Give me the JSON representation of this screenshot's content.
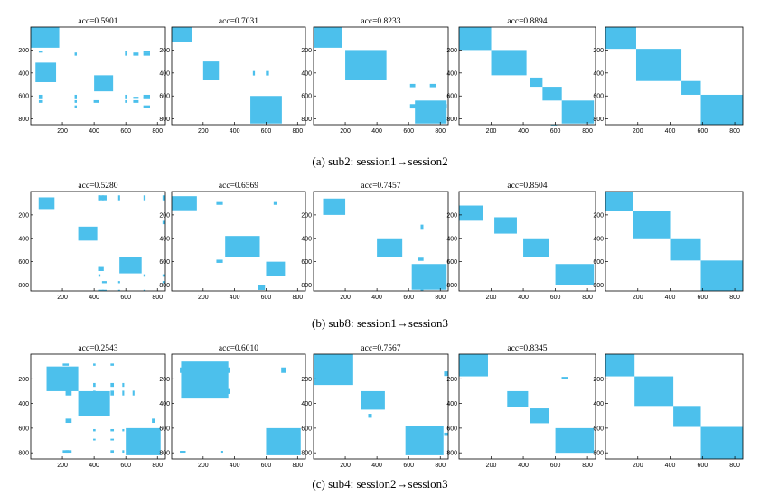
{
  "figure": {
    "captions": [
      "(a)  sub2: session1→session2",
      "(b)  sub8: session1→session3",
      "(c)  sub4: session2→session3"
    ],
    "colors": {
      "fill": "#4cc0ec",
      "background": "#ffffff",
      "axis": "#000000"
    }
  },
  "chart_data": [
    {
      "type": "heatmap",
      "title": "acc=0.5901",
      "x_range": [
        0,
        850
      ],
      "y_range": [
        0,
        850
      ],
      "xticks": [
        200,
        400,
        600,
        800
      ],
      "yticks": [
        200,
        400,
        600,
        800
      ],
      "density": 0.45,
      "blocks": [
        [
          0,
          180,
          0,
          180
        ],
        [
          30,
          160,
          310,
          480
        ],
        [
          400,
          520,
          420,
          560
        ]
      ]
    },
    {
      "type": "heatmap",
      "title": "acc=0.7031",
      "x_range": [
        0,
        850
      ],
      "y_range": [
        0,
        850
      ],
      "xticks": [
        200,
        400,
        600,
        800
      ],
      "yticks": [
        200,
        400,
        600,
        800
      ],
      "density": 0.3,
      "blocks": [
        [
          0,
          130,
          0,
          130
        ],
        [
          200,
          300,
          300,
          460
        ],
        [
          500,
          700,
          600,
          840
        ]
      ]
    },
    {
      "type": "heatmap",
      "title": "acc=0.8233",
      "x_range": [
        0,
        850
      ],
      "y_range": [
        0,
        850
      ],
      "xticks": [
        200,
        400,
        600,
        800
      ],
      "yticks": [
        200,
        400,
        600,
        800
      ],
      "density": 0.22,
      "blocks": [
        [
          0,
          180,
          0,
          180
        ],
        [
          200,
          460,
          200,
          460
        ],
        [
          640,
          840,
          640,
          840
        ]
      ]
    },
    {
      "type": "heatmap",
      "title": "acc=0.8894",
      "x_range": [
        0,
        850
      ],
      "y_range": [
        0,
        850
      ],
      "xticks": [
        200,
        400,
        600,
        800
      ],
      "yticks": [
        200,
        400,
        600,
        800
      ],
      "density": 0.12,
      "blocks": [
        [
          0,
          200,
          0,
          200
        ],
        [
          200,
          420,
          200,
          420
        ],
        [
          440,
          520,
          440,
          520
        ],
        [
          520,
          640,
          520,
          640
        ],
        [
          640,
          840,
          640,
          840
        ]
      ]
    },
    {
      "type": "heatmap",
      "title": "",
      "x_range": [
        0,
        850
      ],
      "y_range": [
        0,
        850
      ],
      "xticks": [
        200,
        400,
        600,
        800
      ],
      "yticks": [
        200,
        400,
        600,
        800
      ],
      "density": 0.0,
      "blocks": [
        [
          0,
          190,
          0,
          190
        ],
        [
          190,
          470,
          190,
          470
        ],
        [
          470,
          590,
          470,
          590
        ],
        [
          590,
          850,
          590,
          850
        ]
      ]
    },
    {
      "type": "heatmap",
      "title": "acc=0.5280",
      "x_range": [
        0,
        850
      ],
      "y_range": [
        0,
        850
      ],
      "xticks": [
        200,
        400,
        600,
        800
      ],
      "yticks": [
        200,
        400,
        600,
        800
      ],
      "density": 0.42,
      "blocks": [
        [
          50,
          150,
          50,
          150
        ],
        [
          300,
          420,
          300,
          420
        ],
        [
          560,
          700,
          560,
          700
        ]
      ]
    },
    {
      "type": "heatmap",
      "title": "acc=0.6569",
      "x_range": [
        0,
        850
      ],
      "y_range": [
        0,
        850
      ],
      "xticks": [
        200,
        400,
        600,
        800
      ],
      "yticks": [
        200,
        400,
        600,
        800
      ],
      "density": 0.3,
      "blocks": [
        [
          0,
          160,
          40,
          160
        ],
        [
          340,
          560,
          380,
          560
        ],
        [
          600,
          720,
          600,
          720
        ]
      ]
    },
    {
      "type": "heatmap",
      "title": "acc=0.7457",
      "x_range": [
        0,
        850
      ],
      "y_range": [
        0,
        850
      ],
      "xticks": [
        200,
        400,
        600,
        800
      ],
      "yticks": [
        200,
        400,
        600,
        800
      ],
      "density": 0.26,
      "blocks": [
        [
          60,
          200,
          60,
          200
        ],
        [
          400,
          560,
          400,
          560
        ],
        [
          620,
          840,
          620,
          840
        ]
      ]
    },
    {
      "type": "heatmap",
      "title": "acc=0.8504",
      "x_range": [
        0,
        850
      ],
      "y_range": [
        0,
        850
      ],
      "xticks": [
        200,
        400,
        600,
        800
      ],
      "yticks": [
        200,
        400,
        600,
        800
      ],
      "density": 0.1,
      "blocks": [
        [
          0,
          150,
          120,
          250
        ],
        [
          220,
          360,
          220,
          360
        ],
        [
          400,
          560,
          400,
          560
        ],
        [
          600,
          840,
          620,
          800
        ]
      ]
    },
    {
      "type": "heatmap",
      "title": "",
      "x_range": [
        0,
        850
      ],
      "y_range": [
        0,
        850
      ],
      "xticks": [
        200,
        400,
        600,
        800
      ],
      "yticks": [
        200,
        400,
        600,
        800
      ],
      "density": 0.0,
      "blocks": [
        [
          0,
          170,
          0,
          170
        ],
        [
          170,
          400,
          170,
          400
        ],
        [
          400,
          590,
          400,
          590
        ],
        [
          590,
          850,
          590,
          850
        ]
      ]
    },
    {
      "type": "heatmap",
      "title": "acc=0.2543",
      "x_range": [
        0,
        850
      ],
      "y_range": [
        0,
        850
      ],
      "xticks": [
        200,
        400,
        600,
        800
      ],
      "yticks": [
        200,
        400,
        600,
        800
      ],
      "density": 0.48,
      "blocks": [
        [
          100,
          300,
          100,
          300
        ],
        [
          300,
          500,
          300,
          500
        ],
        [
          600,
          820,
          600,
          820
        ]
      ]
    },
    {
      "type": "heatmap",
      "title": "acc=0.6010",
      "x_range": [
        0,
        850
      ],
      "y_range": [
        0,
        850
      ],
      "xticks": [
        200,
        400,
        600,
        800
      ],
      "yticks": [
        200,
        400,
        600,
        800
      ],
      "density": 0.28,
      "blocks": [
        [
          60,
          360,
          60,
          360
        ],
        [
          600,
          820,
          600,
          820
        ]
      ]
    },
    {
      "type": "heatmap",
      "title": "acc=0.7567",
      "x_range": [
        0,
        850
      ],
      "y_range": [
        0,
        850
      ],
      "xticks": [
        200,
        400,
        600,
        800
      ],
      "yticks": [
        200,
        400,
        600,
        800
      ],
      "density": 0.24,
      "blocks": [
        [
          0,
          250,
          0,
          250
        ],
        [
          300,
          450,
          300,
          450
        ],
        [
          580,
          820,
          580,
          820
        ]
      ]
    },
    {
      "type": "heatmap",
      "title": "acc=0.8345",
      "x_range": [
        0,
        850
      ],
      "y_range": [
        0,
        850
      ],
      "xticks": [
        200,
        400,
        600,
        800
      ],
      "yticks": [
        200,
        400,
        600,
        800
      ],
      "density": 0.18,
      "blocks": [
        [
          0,
          180,
          0,
          180
        ],
        [
          300,
          430,
          300,
          430
        ],
        [
          440,
          560,
          440,
          560
        ],
        [
          600,
          840,
          600,
          800
        ]
      ]
    },
    {
      "type": "heatmap",
      "title": "",
      "x_range": [
        0,
        850
      ],
      "y_range": [
        0,
        850
      ],
      "xticks": [
        200,
        400,
        600,
        800
      ],
      "yticks": [
        200,
        400,
        600,
        800
      ],
      "density": 0.0,
      "blocks": [
        [
          0,
          180,
          0,
          180
        ],
        [
          180,
          420,
          180,
          420
        ],
        [
          420,
          590,
          420,
          590
        ],
        [
          590,
          850,
          590,
          850
        ]
      ]
    }
  ]
}
